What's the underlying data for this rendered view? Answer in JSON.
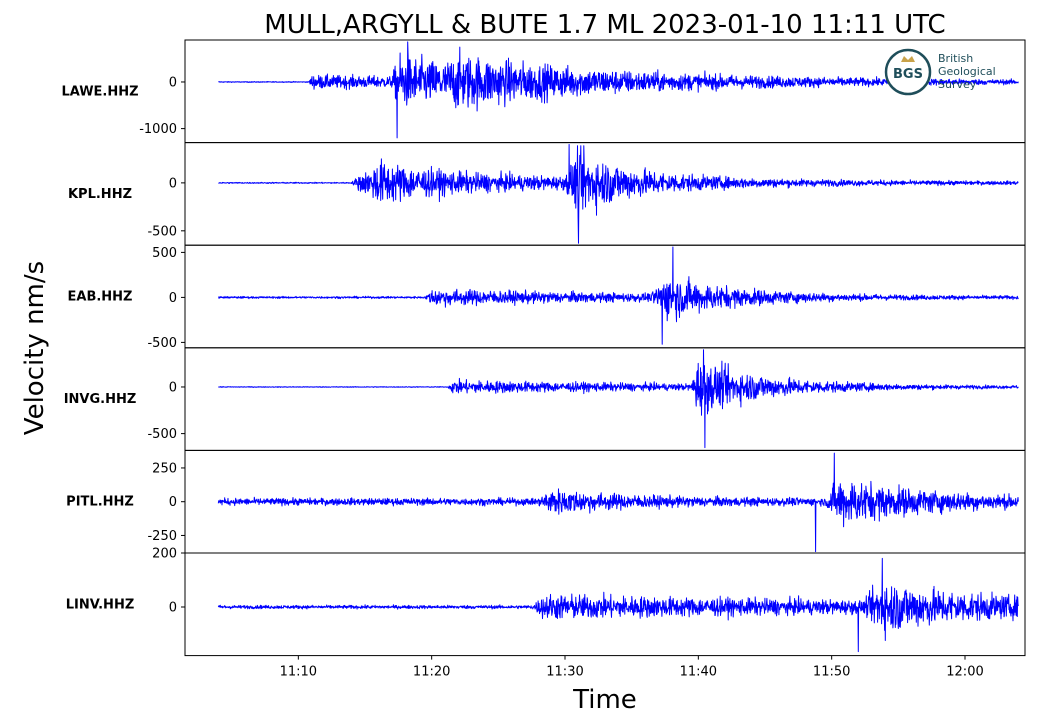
{
  "chart_data": {
    "type": "line",
    "title": "MULL,ARGYLL & BUTE 1.7 ML   2023-01-10 11:11 UTC",
    "ylabel": "Velocity nm/s",
    "xlabel": "Time",
    "x_range_min": [
      1.5,
      64.5
    ],
    "trace_span_min": [
      4,
      64
    ],
    "x_ticks": [
      {
        "v": 10,
        "label": "11:10"
      },
      {
        "v": 20,
        "label": "11:20"
      },
      {
        "v": 30,
        "label": "11:30"
      },
      {
        "v": 40,
        "label": "11:40"
      },
      {
        "v": 50,
        "label": "11:50"
      },
      {
        "v": 60,
        "label": "12:00"
      }
    ],
    "panels": [
      {
        "station": "LAWE.HHZ",
        "ylim": [
          -1300,
          900
        ],
        "yticks": [
          {
            "v": 0,
            "label": "0"
          },
          {
            "v": -1000,
            "label": "-1000"
          }
        ],
        "noise": 12,
        "events": [
          {
            "t": 10.8,
            "amp": 180,
            "rise": 0.2,
            "decay": 25
          },
          {
            "t": 17.0,
            "amp": 650,
            "rise": 0.6,
            "decay": 8
          },
          {
            "t": 21.0,
            "amp": 330,
            "rise": 1.0,
            "decay": 18
          }
        ],
        "spikes": [
          {
            "t": 17.4,
            "v": -1200
          },
          {
            "t": 18.2,
            "v": 860
          }
        ]
      },
      {
        "station": "KPL.HHZ",
        "ylim": [
          -650,
          420
        ],
        "yticks": [
          {
            "v": 0,
            "label": "0"
          },
          {
            "v": -500,
            "label": "-500"
          }
        ],
        "noise": 8,
        "events": [
          {
            "t": 14.0,
            "amp": 150,
            "rise": 0.8,
            "decay": 22
          },
          {
            "t": 15.5,
            "amp": 180,
            "rise": 0.3,
            "decay": 4
          },
          {
            "t": 30.0,
            "amp": 430,
            "rise": 1.0,
            "decay": 4.5
          }
        ],
        "spikes": [
          {
            "t": 31.0,
            "v": -630
          },
          {
            "t": 30.3,
            "v": 400
          }
        ]
      },
      {
        "station": "EAB.HHZ",
        "ylim": [
          -560,
          580
        ],
        "yticks": [
          {
            "v": 500,
            "label": "500"
          },
          {
            "v": 0,
            "label": "0"
          },
          {
            "v": -500,
            "label": "-500"
          }
        ],
        "noise": 14,
        "events": [
          {
            "t": 19.5,
            "amp": 110,
            "rise": 0.6,
            "decay": 18
          },
          {
            "t": 36.5,
            "amp": 330,
            "rise": 1.2,
            "decay": 5
          }
        ],
        "spikes": [
          {
            "t": 38.1,
            "v": 560
          },
          {
            "t": 37.3,
            "v": -520
          }
        ]
      },
      {
        "station": "INVG.HHZ",
        "ylim": [
          -680,
          420
        ],
        "yticks": [
          {
            "v": 0,
            "label": "0"
          },
          {
            "v": -500,
            "label": "-500"
          }
        ],
        "noise": 5,
        "events": [
          {
            "t": 21.2,
            "amp": 90,
            "rise": 0.4,
            "decay": 22
          },
          {
            "t": 39.5,
            "amp": 360,
            "rise": 0.4,
            "decay": 5
          }
        ],
        "spikes": [
          {
            "t": 40.5,
            "v": -650
          },
          {
            "t": 40.4,
            "v": 400
          }
        ]
      },
      {
        "station": "PITL.HHZ",
        "ylim": [
          -380,
          380
        ],
        "yticks": [
          {
            "v": 250,
            "label": "250"
          },
          {
            "v": 0,
            "label": "0"
          },
          {
            "v": -250,
            "label": "-250"
          }
        ],
        "noise": 32,
        "events": [
          {
            "t": 28.0,
            "amp": 110,
            "rise": 1.0,
            "decay": 6
          },
          {
            "t": 49.5,
            "amp": 230,
            "rise": 1.2,
            "decay": 7
          }
        ],
        "spikes": [
          {
            "t": 48.8,
            "v": -370
          },
          {
            "t": 50.2,
            "v": 360
          }
        ]
      },
      {
        "station": "LINV.HHZ",
        "ylim": [
          -180,
          200
        ],
        "yticks": [
          {
            "v": 200,
            "label": "200"
          },
          {
            "v": 0,
            "label": "0"
          }
        ],
        "noise": 8,
        "events": [
          {
            "t": 27.5,
            "amp": 55,
            "rise": 1.0,
            "decay": 30
          },
          {
            "t": 52.5,
            "amp": 110,
            "rise": 1.2,
            "decay": 8
          }
        ],
        "spikes": [
          {
            "t": 52.0,
            "v": -165
          },
          {
            "t": 53.8,
            "v": 180
          }
        ]
      }
    ]
  },
  "logo": {
    "initials": "BGS",
    "lines": [
      "British",
      "Geological",
      "Survey"
    ],
    "ring_color": "#1f4e5a",
    "text_color": "#1f4e5a",
    "initials_color": "#1f4e5a"
  },
  "colors": {
    "trace": "#0000ff",
    "frame": "#000000"
  }
}
